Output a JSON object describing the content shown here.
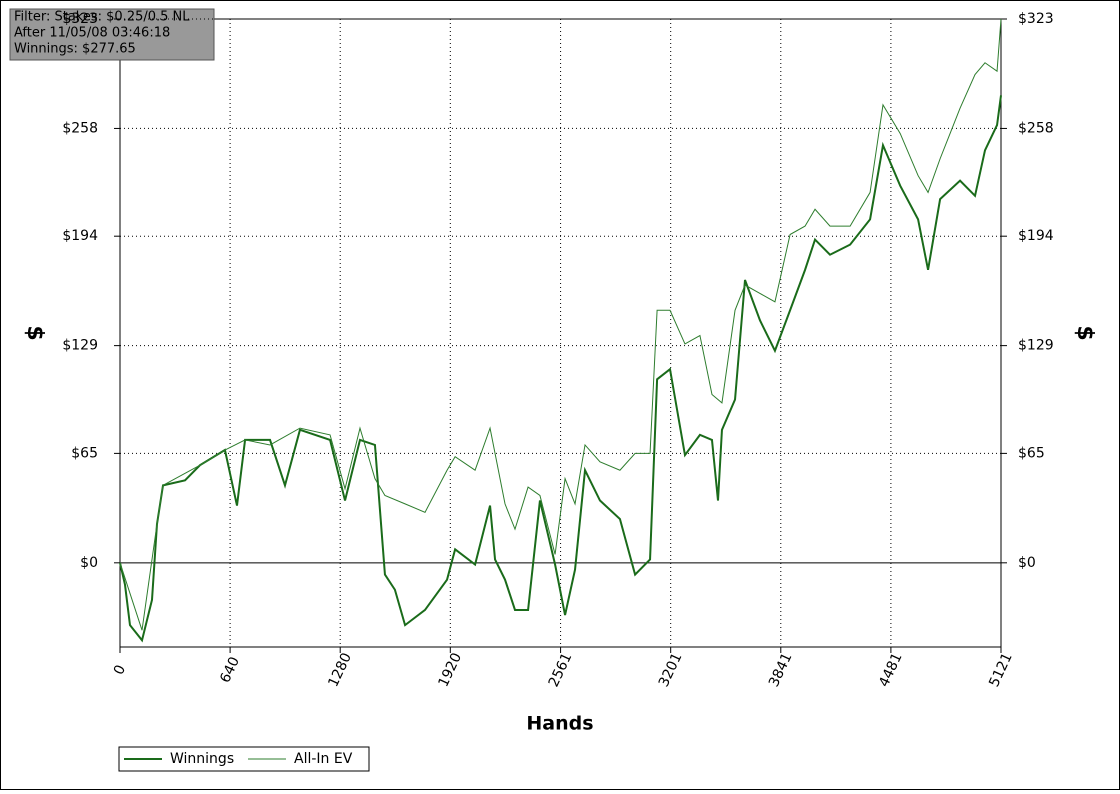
{
  "chart_data": {
    "type": "line",
    "info": [
      "Filter: Stakes: $0.25/0.5 NL",
      "After 11/05/08 03:46:18",
      "Winnings: $277.65"
    ],
    "xlabel": "Hands",
    "ylabel": "$",
    "y2label": "$",
    "xlim": [
      0,
      5121
    ],
    "xticks": [
      0,
      640,
      1280,
      1920,
      2561,
      3201,
      3841,
      4481,
      5121
    ],
    "ylim": [
      -50,
      323
    ],
    "yticks": [
      {
        "value": 0,
        "label": "$0"
      },
      {
        "value": 65,
        "label": "$65"
      },
      {
        "value": 129,
        "label": "$129"
      },
      {
        "value": 194,
        "label": "$194"
      },
      {
        "value": 258,
        "label": "$258"
      },
      {
        "value": 323,
        "label": "$323"
      }
    ],
    "grid": true,
    "series": [
      {
        "name": "Winnings",
        "color": "#1a6b1a",
        "width": 2,
        "x": [
          0,
          29,
          58,
          128,
          186,
          215,
          250,
          378,
          465,
          610,
          680,
          727,
          872,
          959,
          1046,
          1221,
          1308,
          1395,
          1482,
          1540,
          1598,
          1657,
          1773,
          1901,
          1948,
          2064,
          2151,
          2180,
          2238,
          2296,
          2372,
          2441,
          2529,
          2587,
          2645,
          2703,
          2790,
          2906,
          2994,
          3081,
          3122,
          3197,
          3284,
          3371,
          3441,
          3476,
          3499,
          3575,
          3633,
          3720,
          3807,
          3895,
          3982,
          4040,
          4127,
          4244,
          4360,
          4435,
          4535,
          4639,
          4697,
          4767,
          4883,
          4970,
          5028,
          5098,
          5121
        ],
        "values": [
          0,
          -13,
          -37,
          -46,
          -22,
          23,
          46,
          49,
          58,
          67,
          34,
          73,
          73,
          46,
          79,
          73,
          37,
          73,
          70,
          -7,
          -16,
          -37,
          -28,
          -10,
          8,
          -1,
          34,
          2,
          -10,
          -28,
          -28,
          37,
          -1,
          -31,
          -4,
          55,
          37,
          26,
          -7,
          2,
          109,
          115,
          64,
          76,
          73,
          37,
          79,
          97,
          168,
          144,
          126,
          150,
          174,
          192,
          183,
          189,
          204,
          248,
          224,
          204,
          174,
          216,
          227,
          218,
          245,
          260,
          277.65
        ]
      },
      {
        "name": "All-In EV",
        "color": "#2e7d2e",
        "width": 1,
        "x": [
          0,
          128,
          215,
          250,
          465,
          610,
          727,
          872,
          1046,
          1221,
          1308,
          1395,
          1482,
          1540,
          1657,
          1773,
          1901,
          1948,
          2064,
          2151,
          2238,
          2296,
          2372,
          2441,
          2529,
          2587,
          2645,
          2703,
          2790,
          2906,
          2994,
          3081,
          3122,
          3197,
          3284,
          3371,
          3441,
          3499,
          3575,
          3633,
          3720,
          3807,
          3895,
          3982,
          4040,
          4127,
          4244,
          4360,
          4435,
          4535,
          4639,
          4697,
          4767,
          4883,
          4970,
          5028,
          5098,
          5121
        ],
        "values": [
          0,
          -40,
          23,
          46,
          58,
          67,
          73,
          70,
          80,
          76,
          44,
          80,
          50,
          40,
          35,
          30,
          55,
          63,
          55,
          80,
          35,
          20,
          45,
          40,
          5,
          50,
          35,
          70,
          60,
          55,
          65,
          65,
          150,
          150,
          130,
          135,
          100,
          95,
          150,
          165,
          160,
          155,
          195,
          200,
          210,
          200,
          200,
          220,
          272,
          255,
          230,
          220,
          240,
          270,
          290,
          297,
          292,
          323
        ]
      }
    ]
  }
}
